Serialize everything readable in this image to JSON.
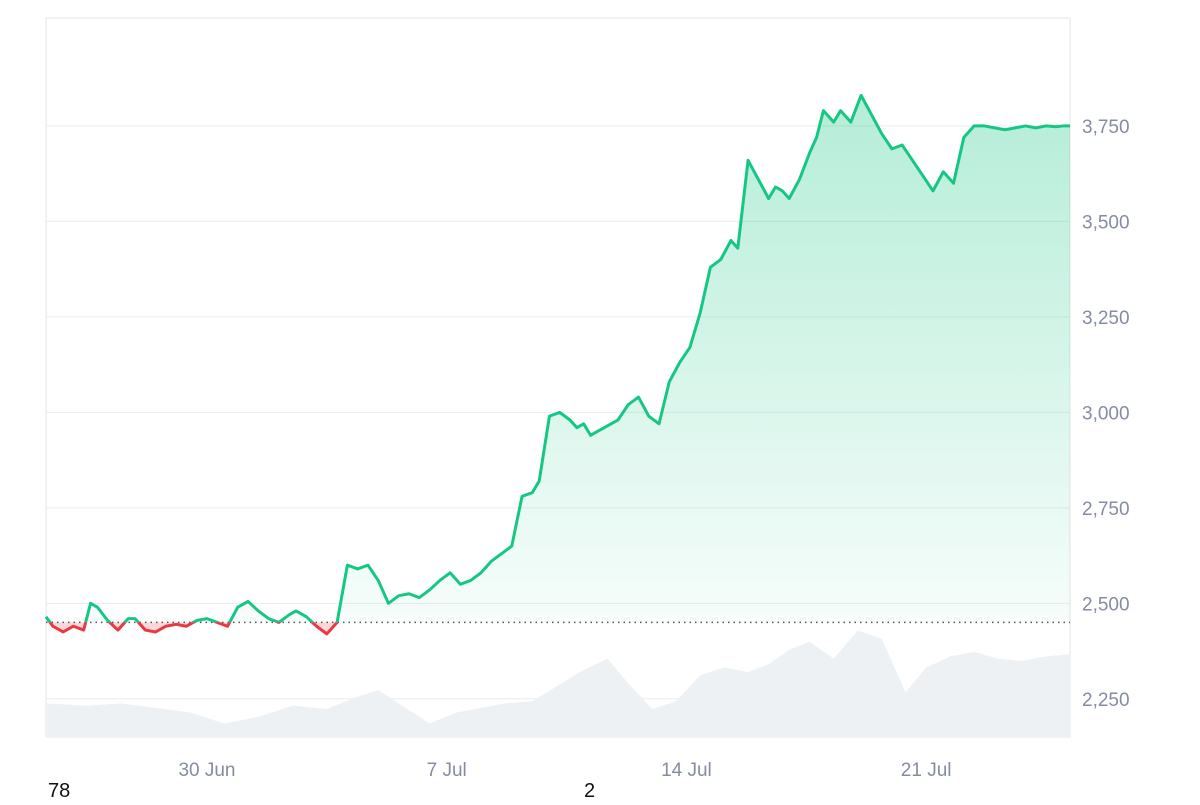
{
  "chart_data": {
    "type": "area",
    "baseline": 2450,
    "ylim": [
      2150,
      3975
    ],
    "y_ticks": [
      "2,250",
      "2,500",
      "2,750",
      "3,000",
      "3,250",
      "3,500",
      "3,750"
    ],
    "y_tick_values": [
      2250,
      2500,
      2750,
      3000,
      3250,
      3500,
      3750
    ],
    "x_ticks": [
      "30 Jun",
      "7 Jul",
      "14 Jul",
      "21 Jul"
    ],
    "x_tick_days": [
      4,
      11,
      18,
      25
    ],
    "x_range_days": [
      -0.7,
      29.2
    ],
    "series": [
      {
        "x_days": [
          -0.7,
          -0.5,
          -0.2,
          0.1,
          0.4,
          0.6,
          0.8,
          1.1,
          1.4,
          1.7,
          1.9,
          2.2,
          2.5,
          2.8,
          3.1,
          3.4,
          3.7,
          4.0,
          4.3,
          4.6,
          4.9,
          5.2,
          5.5,
          5.8,
          6.1,
          6.4,
          6.6,
          6.9,
          7.2,
          7.5,
          7.8,
          8.1,
          8.4,
          8.7,
          9.0,
          9.3,
          9.6,
          9.9,
          10.2,
          10.5,
          10.8,
          11.1,
          11.4,
          11.7,
          12.0,
          12.3,
          12.6,
          12.9,
          13.2,
          13.5,
          13.7,
          14.0,
          14.3,
          14.6,
          14.8,
          15.0,
          15.2,
          15.4,
          15.6,
          15.8,
          16.0,
          16.3,
          16.6,
          16.9,
          17.2,
          17.5,
          17.8,
          18.1,
          18.4,
          18.7,
          19.0,
          19.3,
          19.5,
          19.8,
          20.1,
          20.4,
          20.6,
          20.8,
          21.0,
          21.3,
          21.6,
          21.8,
          22.0,
          22.3,
          22.5,
          22.8,
          23.1,
          23.4,
          23.7,
          24.0,
          24.3,
          24.6,
          24.9,
          25.2,
          25.5,
          25.8,
          26.1,
          26.4,
          26.7,
          27.0,
          27.3,
          27.6,
          27.9,
          28.2,
          28.5,
          28.8,
          29.0,
          29.2
        ],
        "values": [
          2465,
          2440,
          2425,
          2440,
          2430,
          2500,
          2490,
          2455,
          2430,
          2460,
          2460,
          2430,
          2425,
          2440,
          2445,
          2440,
          2455,
          2460,
          2450,
          2440,
          2490,
          2505,
          2480,
          2460,
          2450,
          2470,
          2480,
          2465,
          2440,
          2420,
          2450,
          2600,
          2590,
          2600,
          2560,
          2500,
          2520,
          2525,
          2515,
          2535,
          2560,
          2580,
          2550,
          2560,
          2580,
          2610,
          2630,
          2650,
          2780,
          2790,
          2820,
          2990,
          3000,
          2980,
          2960,
          2970,
          2940,
          2950,
          2960,
          2970,
          2980,
          3020,
          3040,
          2990,
          2970,
          3080,
          3130,
          3170,
          3260,
          3380,
          3400,
          3450,
          3430,
          3660,
          3610,
          3560,
          3590,
          3580,
          3560,
          3610,
          3680,
          3720,
          3790,
          3760,
          3790,
          3760,
          3830,
          3780,
          3730,
          3690,
          3700,
          3660,
          3620,
          3580,
          3630,
          3600,
          3720,
          3750,
          3750,
          3745,
          3740,
          3745,
          3750,
          3745,
          3750,
          3748,
          3750,
          3750
        ]
      }
    ],
    "volume_x_days": [
      -0.7,
      0.5,
      1.5,
      2.5,
      3.5,
      4.5,
      5.5,
      6.5,
      7.5,
      8.3,
      9.0,
      9.7,
      10.5,
      11.3,
      12.0,
      12.7,
      13.5,
      14.2,
      15.0,
      15.7,
      16.3,
      17.0,
      17.7,
      18.4,
      19.1,
      19.8,
      20.4,
      21.0,
      21.6,
      22.3,
      23.0,
      23.7,
      24.4,
      25.0,
      25.7,
      26.4,
      27.1,
      27.8,
      28.5,
      29.2
    ],
    "volume_values": [
      0.3,
      0.28,
      0.3,
      0.26,
      0.22,
      0.12,
      0.18,
      0.28,
      0.25,
      0.35,
      0.42,
      0.28,
      0.12,
      0.22,
      0.26,
      0.3,
      0.32,
      0.45,
      0.6,
      0.7,
      0.48,
      0.25,
      0.32,
      0.55,
      0.62,
      0.58,
      0.65,
      0.78,
      0.85,
      0.7,
      0.95,
      0.88,
      0.4,
      0.62,
      0.72,
      0.76,
      0.7,
      0.68,
      0.72,
      0.74
    ],
    "colors": {
      "up_line": "#16c784",
      "down_line": "#ea3943",
      "down_fill": "#f8c7c9",
      "volume": "#eef1f4",
      "grid": "#e9ecef",
      "baseline_dots": "#555555",
      "tick_text": "#858ca2"
    }
  },
  "footer": {
    "left": "78",
    "mid": "2"
  }
}
